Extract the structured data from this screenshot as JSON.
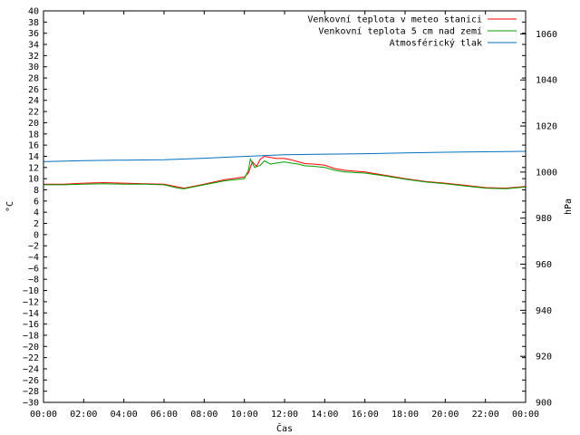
{
  "chart_data": {
    "type": "line",
    "title": "",
    "xlabel": "Čas",
    "ylabel": "°C",
    "y2label": "hPa",
    "x_ticks": [
      "00:00",
      "02:00",
      "04:00",
      "06:00",
      "08:00",
      "10:00",
      "12:00",
      "14:00",
      "16:00",
      "18:00",
      "20:00",
      "22:00",
      "00:00"
    ],
    "xlim": [
      0,
      24
    ],
    "ylim": [
      -30,
      40
    ],
    "y_step": 2,
    "y2lim": [
      900,
      1070
    ],
    "y2_ticks": [
      900,
      920,
      940,
      960,
      980,
      1000,
      1020,
      1040,
      1060
    ],
    "grid": false,
    "legend_position": "top-right",
    "series": [
      {
        "name": "Venkovní teplota v meteo stanici",
        "color": "#ff0000",
        "axis": "y",
        "x": [
          0,
          1,
          2,
          3,
          4,
          5,
          6,
          6.7,
          7,
          8,
          9,
          10,
          10.2,
          10.4,
          10.6,
          10.8,
          11,
          11.3,
          11.6,
          12,
          12.3,
          12.7,
          13,
          13.5,
          14,
          14.5,
          15,
          16,
          17,
          18,
          19,
          20,
          21,
          22,
          23,
          24
        ],
        "y": [
          9.0,
          9.0,
          9.2,
          9.3,
          9.2,
          9.1,
          9.0,
          8.5,
          8.3,
          9.0,
          9.8,
          10.3,
          11.0,
          13.0,
          12.2,
          13.5,
          14.0,
          13.8,
          13.6,
          13.6,
          13.4,
          13.0,
          12.7,
          12.6,
          12.4,
          11.8,
          11.5,
          11.2,
          10.6,
          10.0,
          9.5,
          9.2,
          8.8,
          8.4,
          8.3,
          8.6
        ]
      },
      {
        "name": "Venkovní teplota 5 cm nad zemí",
        "color": "#00a000",
        "axis": "y",
        "x": [
          0,
          1,
          2,
          3,
          4,
          5,
          6,
          6.7,
          7,
          8,
          9,
          10,
          10.2,
          10.3,
          10.5,
          10.8,
          11,
          11.3,
          11.6,
          12,
          12.3,
          12.7,
          13,
          13.5,
          14,
          14.5,
          15,
          16,
          17,
          18,
          19,
          20,
          21,
          22,
          23,
          24
        ],
        "y": [
          8.9,
          8.9,
          9.0,
          9.1,
          9.0,
          9.0,
          8.9,
          8.3,
          8.2,
          8.9,
          9.6,
          10.0,
          11.5,
          13.5,
          12.0,
          12.4,
          13.2,
          12.6,
          12.8,
          13.0,
          12.8,
          12.6,
          12.3,
          12.2,
          12.0,
          11.5,
          11.2,
          11.0,
          10.5,
          9.9,
          9.4,
          9.1,
          8.7,
          8.3,
          8.2,
          8.5
        ]
      },
      {
        "name": "Atmosférický tlak",
        "color": "#0070c0",
        "axis": "y2",
        "x": [
          0,
          2,
          4,
          6,
          8,
          10,
          12,
          14,
          16,
          18,
          20,
          22,
          24
        ],
        "y": [
          1004.5,
          1005.0,
          1005.2,
          1005.4,
          1006.0,
          1006.8,
          1007.5,
          1007.8,
          1008.0,
          1008.3,
          1008.6,
          1008.8,
          1009.0
        ]
      }
    ]
  }
}
